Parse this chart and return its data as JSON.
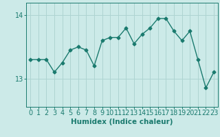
{
  "x": [
    0,
    1,
    2,
    3,
    4,
    5,
    6,
    7,
    8,
    9,
    10,
    11,
    12,
    13,
    14,
    15,
    16,
    17,
    18,
    19,
    20,
    21,
    22,
    23
  ],
  "y": [
    13.3,
    13.3,
    13.3,
    13.1,
    13.25,
    13.45,
    13.5,
    13.45,
    13.2,
    13.6,
    13.65,
    13.65,
    13.8,
    13.55,
    13.7,
    13.8,
    13.95,
    13.95,
    13.75,
    13.6,
    13.75,
    13.3,
    12.85,
    13.1
  ],
  "line_color": "#1a7a6e",
  "marker": "D",
  "markersize": 2.5,
  "linewidth": 1.0,
  "bg_color": "#cceae8",
  "plot_bg_color": "#cceae8",
  "grid_color": "#aed4d1",
  "xlabel": "Humidex (Indice chaleur)",
  "xlabel_fontsize": 7.5,
  "tick_fontsize": 7,
  "yticks": [
    13,
    14
  ],
  "ylim": [
    12.55,
    14.2
  ],
  "xlim": [
    -0.5,
    23.5
  ],
  "xticks": [
    0,
    1,
    2,
    3,
    4,
    5,
    6,
    7,
    8,
    9,
    10,
    11,
    12,
    13,
    14,
    15,
    16,
    17,
    18,
    19,
    20,
    21,
    22,
    23
  ]
}
